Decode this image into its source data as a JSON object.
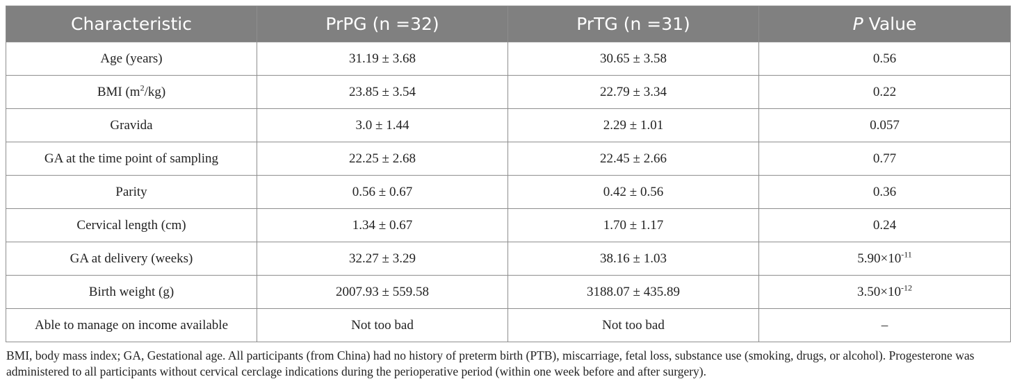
{
  "table": {
    "headers": {
      "characteristic": "Characteristic",
      "prpg": "PrPG (n =32)",
      "prtg": "PrTG (n =31)",
      "p_italic": "P",
      "p_rest": " Value"
    },
    "rows": [
      {
        "label": "Age (years)",
        "prpg": "31.19 ± 3.68",
        "prtg": "30.65 ± 3.58",
        "p": "0.56"
      },
      {
        "label_pre": "BMI (m",
        "label_sup": "2",
        "label_post": "/kg)",
        "prpg": "23.85 ± 3.54",
        "prtg": "22.79 ± 3.34",
        "p": "0.22"
      },
      {
        "label": "Gravida",
        "prpg": "3.0 ± 1.44",
        "prtg": "2.29 ± 1.01",
        "p": "0.057"
      },
      {
        "label": "GA at the time point of sampling",
        "prpg": "22.25 ± 2.68",
        "prtg": "22.45 ± 2.66",
        "p": "0.77"
      },
      {
        "label": "Parity",
        "prpg": "0.56 ± 0.67",
        "prtg": "0.42 ± 0.56",
        "p": "0.36"
      },
      {
        "label": "Cervical length (cm)",
        "prpg": "1.34 ± 0.67",
        "prtg": "1.70 ± 1.17",
        "p": "0.24"
      },
      {
        "label": "GA at delivery (weeks)",
        "prpg": "32.27 ± 3.29",
        "prtg": "38.16 ± 1.03",
        "p_base": "5.90×10",
        "p_exp": "-11"
      },
      {
        "label": "Birth weight (g)",
        "prpg": "2007.93 ± 559.58",
        "prtg": "3188.07 ± 435.89",
        "p_base": "3.50×10",
        "p_exp": "-12"
      },
      {
        "label": "Able to manage on income available",
        "prpg": "Not too bad",
        "prtg": "Not too bad",
        "p": "–"
      }
    ]
  },
  "footnote": "BMI, body mass index; GA, Gestational age. All participants (from China) had no history of preterm birth (PTB), miscarriage, fetal loss, substance use (smoking, drugs, or alcohol). Progesterone was administered to all participants without cervical cerclage indications during the perioperative period (within one week before and after surgery)."
}
